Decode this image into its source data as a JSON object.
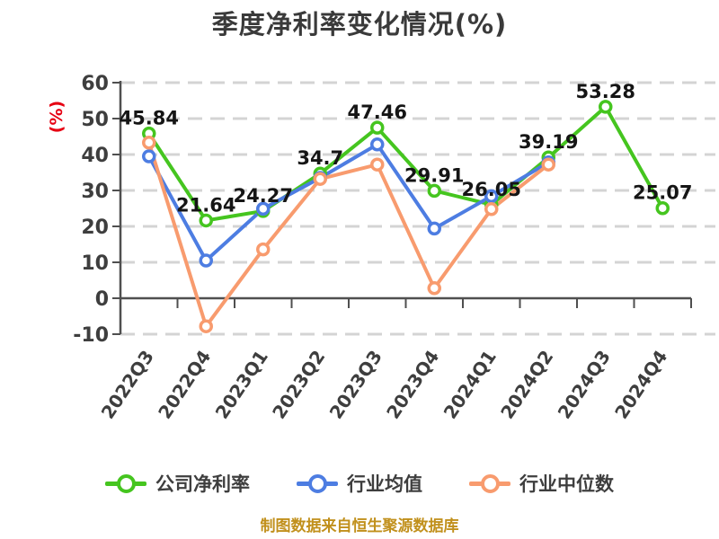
{
  "chart_data": {
    "type": "line",
    "title": "季度净利率变化情况(%)",
    "ylabel": "(%)",
    "ylabel_color": "#e60012",
    "categories": [
      "2022Q3",
      "2022Q4",
      "2023Q1",
      "2023Q2",
      "2023Q3",
      "2023Q4",
      "2024Q1",
      "2024Q2",
      "2024Q3",
      "2024Q4"
    ],
    "yticks": [
      60,
      50,
      40,
      30,
      20,
      10,
      0,
      -10
    ],
    "ylim": [
      -10,
      60
    ],
    "grid": "horizontal-dashed",
    "legend_position": "bottom",
    "series": [
      {
        "name": "公司净利率",
        "color": "#45c51f",
        "show_labels": true,
        "values": [
          45.84,
          21.64,
          24.27,
          34.7,
          47.46,
          29.91,
          26.05,
          39.19,
          53.28,
          25.07
        ]
      },
      {
        "name": "行业均值",
        "color": "#4d7de2",
        "show_labels": false,
        "values": [
          39.5,
          10.5,
          24.9,
          33.5,
          42.8,
          19.4,
          28.4,
          37.8
        ]
      },
      {
        "name": "行业中位数",
        "color": "#f89b6e",
        "show_labels": false,
        "values": [
          43.3,
          -7.8,
          13.6,
          33.2,
          37.2,
          2.8,
          24.8,
          37.2
        ]
      }
    ]
  },
  "footer": {
    "caption": "制图数据来自恒生聚源数据库",
    "caption_color": "#c1901c"
  }
}
